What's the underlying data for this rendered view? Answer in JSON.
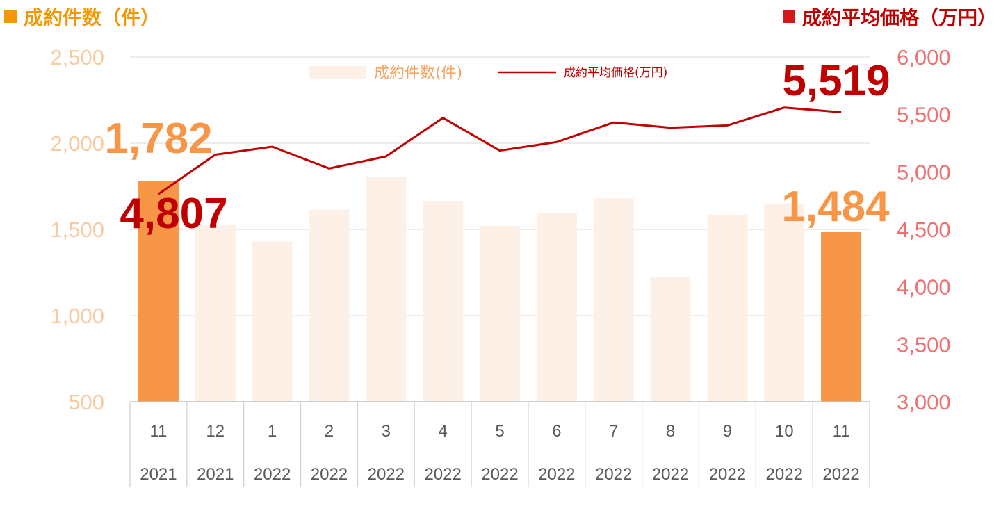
{
  "header": {
    "left_title": "成約件数（件）",
    "right_title": "成約平均価格（万円）"
  },
  "colors": {
    "bar_light": "#fdf0e6",
    "bar_highlight": "#f79646",
    "line": "#c00000",
    "left_axis_text": "#f8cba0",
    "right_axis_text": "#f07070",
    "grid": "#d9d9d9",
    "category_text": "#595959"
  },
  "chart_data": {
    "type": "bar",
    "categories": [
      "11",
      "12",
      "1",
      "2",
      "3",
      "4",
      "5",
      "6",
      "7",
      "8",
      "9",
      "10",
      "11"
    ],
    "years": [
      "2021",
      "2021",
      "2022",
      "2022",
      "2022",
      "2022",
      "2022",
      "2022",
      "2022",
      "2022",
      "2022",
      "2022",
      "2022"
    ],
    "series": [
      {
        "name": "成約件数(件)",
        "type": "bar",
        "axis": "left",
        "values": [
          1782,
          1525,
          1430,
          1615,
          1805,
          1665,
          1520,
          1595,
          1680,
          1225,
          1585,
          1650,
          1484
        ],
        "highlight_indices": [
          0,
          12
        ]
      },
      {
        "name": "成約平均価格(万円)",
        "type": "line",
        "axis": "right",
        "values": [
          4807,
          5150,
          5220,
          5030,
          5135,
          5470,
          5185,
          5260,
          5430,
          5385,
          5405,
          5560,
          5519
        ]
      }
    ],
    "ylim_left": [
      500,
      2500
    ],
    "yticks_left": [
      "500",
      "1,000",
      "1,500",
      "2,000",
      "2,500"
    ],
    "ylim_right": [
      3000,
      6000
    ],
    "yticks_right": [
      "3,000",
      "3,500",
      "4,000",
      "4,500",
      "5,000",
      "5,500",
      "6,000"
    ],
    "legend_position": "top-center",
    "annotations": [
      {
        "text": "1,782",
        "series": "bar",
        "index": 0
      },
      {
        "text": "4,807",
        "series": "line",
        "index": 0
      },
      {
        "text": "1,484",
        "series": "bar",
        "index": 12
      },
      {
        "text": "5,519",
        "series": "line",
        "index": 12
      }
    ],
    "grid": true
  }
}
